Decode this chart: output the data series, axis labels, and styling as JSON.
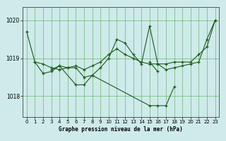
{
  "title": "Graphe pression niveau de la mer (hPa)",
  "background_color": "#ceeaea",
  "grid_color": "#55aa55",
  "line_color": "#1a5c1a",
  "xlim": [
    -0.5,
    23.5
  ],
  "ylim": [
    1017.45,
    1020.35
  ],
  "yticks": [
    1018,
    1019,
    1020
  ],
  "xticks": [
    0,
    1,
    2,
    3,
    4,
    5,
    6,
    7,
    8,
    9,
    10,
    11,
    12,
    13,
    14,
    15,
    16,
    17,
    18,
    19,
    20,
    21,
    22,
    23
  ],
  "series": [
    {
      "x": [
        0,
        1,
        2,
        3,
        4,
        5,
        6,
        7,
        8,
        9,
        10,
        11,
        12,
        13,
        14,
        15,
        16,
        17,
        18,
        19,
        20,
        21,
        22,
        23
      ],
      "y": [
        1019.7,
        1018.9,
        1018.85,
        1018.75,
        1018.7,
        1018.75,
        1018.8,
        1018.7,
        1018.8,
        1018.9,
        1019.1,
        1019.25,
        1019.1,
        1019.0,
        1018.9,
        1018.85,
        1018.85,
        1018.85,
        1018.9,
        1018.9,
        1018.9,
        1019.1,
        1019.3,
        1020.0
      ]
    },
    {
      "x": [
        1,
        2,
        3,
        4,
        5,
        6,
        7,
        8,
        9,
        10,
        11,
        12,
        13,
        14,
        15,
        16,
        17,
        18,
        19,
        20,
        21,
        22,
        23
      ],
      "y": [
        1018.9,
        1018.6,
        1018.65,
        1018.8,
        1018.75,
        1018.75,
        1018.5,
        1018.55,
        1018.75,
        1019.0,
        1019.5,
        1019.4,
        1019.1,
        1018.85,
        1019.85,
        1018.85,
        1018.7,
        1018.75,
        1018.8,
        1018.85,
        1018.9,
        1019.5,
        1020.0
      ]
    },
    {
      "x": [
        3,
        4,
        6,
        7,
        8,
        15,
        16,
        17,
        18
      ],
      "y": [
        1018.7,
        1018.8,
        1018.3,
        1018.3,
        1018.55,
        1017.75,
        1017.75,
        1017.75,
        1018.25
      ]
    },
    {
      "x": [
        15,
        16
      ],
      "y": [
        1018.9,
        1018.65
      ]
    }
  ]
}
